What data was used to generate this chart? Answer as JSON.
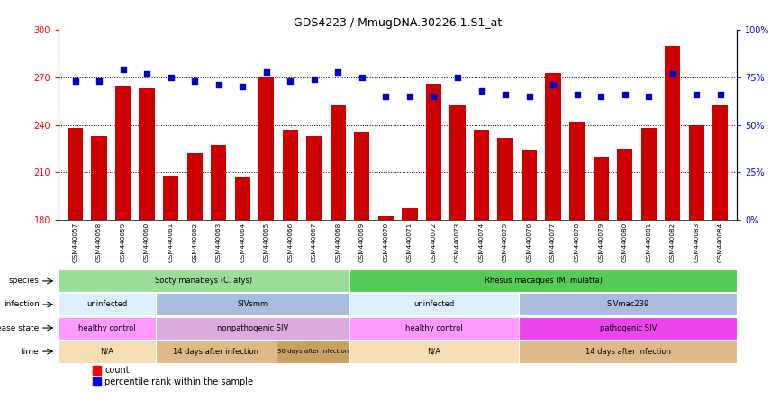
{
  "title": "GDS4223 / MmugDNA.30226.1.S1_at",
  "samples": [
    "GSM440057",
    "GSM440058",
    "GSM440059",
    "GSM440060",
    "GSM440061",
    "GSM440062",
    "GSM440063",
    "GSM440064",
    "GSM440065",
    "GSM440066",
    "GSM440067",
    "GSM440068",
    "GSM440069",
    "GSM440070",
    "GSM440071",
    "GSM440072",
    "GSM440073",
    "GSM440074",
    "GSM440075",
    "GSM440076",
    "GSM440077",
    "GSM440078",
    "GSM440079",
    "GSM440080",
    "GSM440081",
    "GSM440082",
    "GSM440083",
    "GSM440084"
  ],
  "counts": [
    238,
    233,
    265,
    263,
    208,
    222,
    227,
    207,
    270,
    237,
    233,
    252,
    235,
    182,
    187,
    266,
    253,
    237,
    232,
    224,
    273,
    242,
    220,
    225,
    238,
    290,
    240,
    252
  ],
  "percentile_ranks": [
    73,
    73,
    79,
    77,
    75,
    73,
    71,
    70,
    78,
    73,
    74,
    78,
    75,
    65,
    65,
    65,
    75,
    68,
    66,
    65,
    71,
    66,
    65,
    66,
    65,
    77,
    66,
    66
  ],
  "ymin": 180,
  "ymax": 300,
  "y_ticks": [
    180,
    210,
    240,
    270,
    300
  ],
  "y2_ticks": [
    0,
    25,
    50,
    75,
    100
  ],
  "bar_color": "#cc0000",
  "dot_color": "#0000cc",
  "bg_color": "#ffffff",
  "plot_bg": "#ffffff",
  "xticklabel_bg": "#cccccc",
  "species_segs": [
    {
      "label": "Sooty manabeys (C. atys)",
      "start": 0,
      "end": 12,
      "color": "#99dd99"
    },
    {
      "label": "Rhesus macaques (M. mulatta)",
      "start": 12,
      "end": 28,
      "color": "#55cc55"
    }
  ],
  "infection_segs": [
    {
      "label": "uninfected",
      "start": 0,
      "end": 4,
      "color": "#ddeeff"
    },
    {
      "label": "SIVsmm",
      "start": 4,
      "end": 12,
      "color": "#aabbdd"
    },
    {
      "label": "uninfected",
      "start": 12,
      "end": 19,
      "color": "#ddeeff"
    },
    {
      "label": "SIVmac239",
      "start": 19,
      "end": 28,
      "color": "#aabbdd"
    }
  ],
  "disease_segs": [
    {
      "label": "healthy control",
      "start": 0,
      "end": 4,
      "color": "#ff99ff"
    },
    {
      "label": "nonpathogenic SIV",
      "start": 4,
      "end": 12,
      "color": "#ddaadd"
    },
    {
      "label": "healthy control",
      "start": 12,
      "end": 19,
      "color": "#ff99ff"
    },
    {
      "label": "pathogenic SIV",
      "start": 19,
      "end": 28,
      "color": "#ee44ee"
    }
  ],
  "time_segs": [
    {
      "label": "N/A",
      "start": 0,
      "end": 4,
      "color": "#f5deb3"
    },
    {
      "label": "14 days after infection",
      "start": 4,
      "end": 9,
      "color": "#deb887"
    },
    {
      "label": "30 days after infection",
      "start": 9,
      "end": 12,
      "color": "#c8a060"
    },
    {
      "label": "N/A",
      "start": 12,
      "end": 19,
      "color": "#f5deb3"
    },
    {
      "label": "14 days after infection",
      "start": 19,
      "end": 28,
      "color": "#deb887"
    }
  ],
  "row_labels": [
    "species",
    "infection",
    "disease state",
    "time"
  ]
}
